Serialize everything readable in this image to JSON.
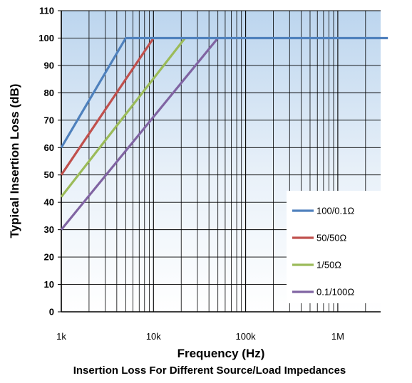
{
  "chart_data": {
    "type": "line",
    "title": "Insertion Loss For Different Source/Load Impedances",
    "xlabel": "Frequency (Hz)",
    "ylabel": "Typical Insertion Loss (dB)",
    "x_scale": "log",
    "xlim": [
      1000,
      3500000
    ],
    "ylim": [
      0,
      110
    ],
    "y_ticks": [
      0,
      10,
      20,
      30,
      40,
      50,
      60,
      70,
      80,
      90,
      100,
      110
    ],
    "x_ticks": [
      {
        "value": 1000,
        "label": "1k"
      },
      {
        "value": 10000,
        "label": "10k"
      },
      {
        "value": 100000,
        "label": "100k"
      },
      {
        "value": 1000000,
        "label": "1M"
      }
    ],
    "grid": true,
    "legend_position": "bottom-right",
    "series": [
      {
        "name": "100/0.1Ω",
        "color": "#4f81bd",
        "x": [
          1000,
          5000,
          3500000
        ],
        "y": [
          60,
          100,
          100
        ]
      },
      {
        "name": "50/50Ω",
        "color": "#c0504d",
        "x": [
          1000,
          10000
        ],
        "y": [
          50,
          100
        ]
      },
      {
        "name": "1/50Ω",
        "color": "#9bbb59",
        "x": [
          1000,
          22000
        ],
        "y": [
          42,
          100
        ]
      },
      {
        "name": "0.1/100Ω",
        "color": "#8064a2",
        "x": [
          1000,
          50000
        ],
        "y": [
          30,
          100
        ]
      }
    ]
  }
}
